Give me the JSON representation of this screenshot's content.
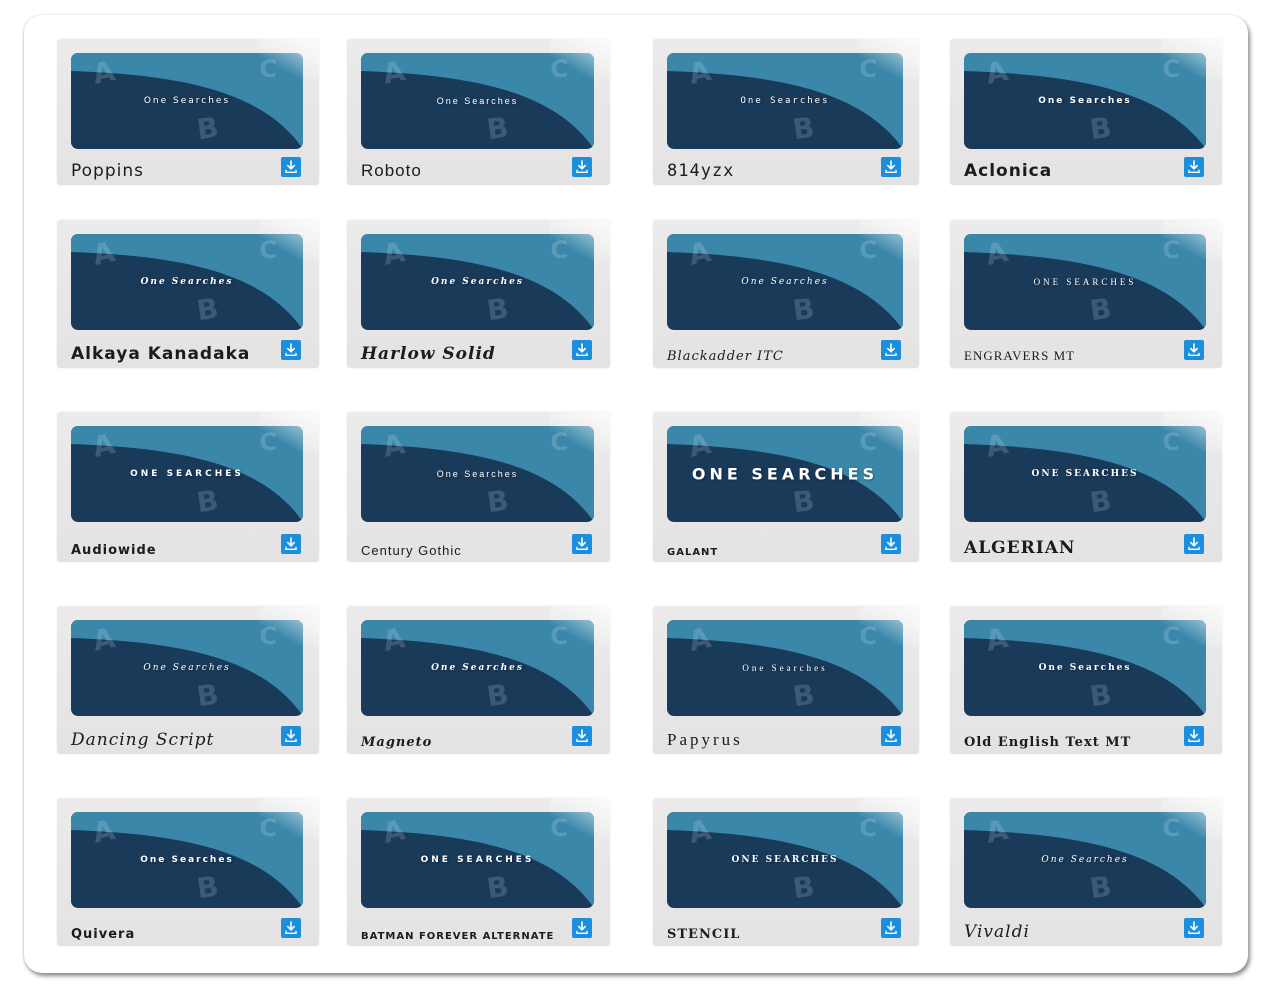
{
  "sample_text": "One Searches",
  "banner_letters": {
    "a": "A",
    "b": "B",
    "c": "C"
  },
  "colors": {
    "banner_dark": "#1a3a5a",
    "banner_light": "#3a87aa",
    "download": "#1c8fdc"
  },
  "icons": {
    "download": "download-icon"
  },
  "fonts": [
    {
      "name": "Poppins",
      "sample": "One Searches"
    },
    {
      "name": "Roboto",
      "sample": "One Searches"
    },
    {
      "name": "814yzx",
      "sample": "One Searches"
    },
    {
      "name": "Aclonica",
      "sample": "One Searches"
    },
    {
      "name": "Alkaya Kanadaka",
      "sample": "One Searches"
    },
    {
      "name": "Harlow Solid",
      "sample": "One Searches"
    },
    {
      "name": "Blackadder ITC",
      "sample": "One Searches"
    },
    {
      "name": "ENGRAVERS MT",
      "sample": "ONE SEARCHES"
    },
    {
      "name": "Audiowide",
      "sample": "One Searches"
    },
    {
      "name": "Century Gothic",
      "sample": "One Searches"
    },
    {
      "name": "GALANT",
      "sample": "ONE SEARCHES"
    },
    {
      "name": "ALGERIAN",
      "sample": "ONE SEARCHES"
    },
    {
      "name": "Dancing Script",
      "sample": "One Searches"
    },
    {
      "name": "Magneto",
      "sample": "One Searches"
    },
    {
      "name": "Papyrus",
      "sample": "One Searches"
    },
    {
      "name": "Old English Text MT",
      "sample": "One Searches"
    },
    {
      "name": "Quivera",
      "sample": "One Searches"
    },
    {
      "name": "BATMAN FOREVER ALTERNATE",
      "sample": "ONE SEARCHES"
    },
    {
      "name": "STENCIL",
      "sample": "ONE SEARCHES"
    },
    {
      "name": "Vivaldi",
      "sample": "One Searches"
    }
  ]
}
